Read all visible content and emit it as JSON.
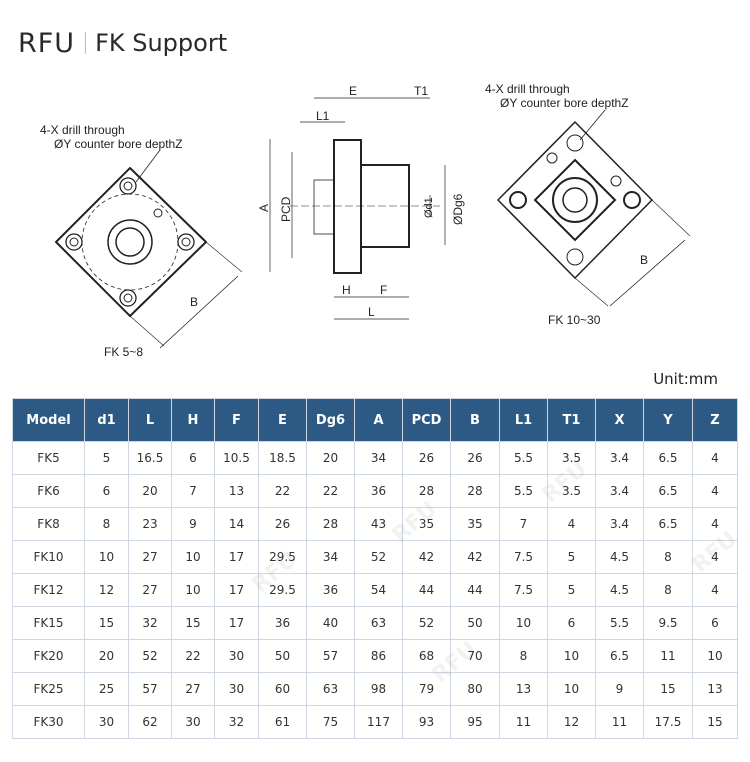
{
  "header": {
    "logo": "RFU",
    "title": "FK Support"
  },
  "drawings": {
    "left": {
      "note_line1": "4-X drill through",
      "note_line2": "ØY counter bore depthZ",
      "dim_b": "B",
      "caption": "FK 5~8"
    },
    "side": {
      "dims": [
        "E",
        "T1",
        "L1",
        "A",
        "PCD",
        "Ød1",
        "ØDg6",
        "H",
        "F",
        "L"
      ]
    },
    "right": {
      "note_line1": "4-X drill through",
      "note_line2": "ØY counter bore depthZ",
      "dim_b": "B",
      "caption": "FK 10~30"
    }
  },
  "unit_label": "Unit:mm",
  "table": {
    "columns": [
      "Model",
      "d1",
      "L",
      "H",
      "F",
      "E",
      "Dg6",
      "A",
      "PCD",
      "B",
      "L1",
      "T1",
      "X",
      "Y",
      "Z"
    ],
    "rows": [
      [
        "FK5",
        "5",
        "16.5",
        "6",
        "10.5",
        "18.5",
        "20",
        "34",
        "26",
        "26",
        "5.5",
        "3.5",
        "3.4",
        "6.5",
        "4"
      ],
      [
        "FK6",
        "6",
        "20",
        "7",
        "13",
        "22",
        "22",
        "36",
        "28",
        "28",
        "5.5",
        "3.5",
        "3.4",
        "6.5",
        "4"
      ],
      [
        "FK8",
        "8",
        "23",
        "9",
        "14",
        "26",
        "28",
        "43",
        "35",
        "35",
        "7",
        "4",
        "3.4",
        "6.5",
        "4"
      ],
      [
        "FK10",
        "10",
        "27",
        "10",
        "17",
        "29.5",
        "34",
        "52",
        "42",
        "42",
        "7.5",
        "5",
        "4.5",
        "8",
        "4"
      ],
      [
        "FK12",
        "12",
        "27",
        "10",
        "17",
        "29.5",
        "36",
        "54",
        "44",
        "44",
        "7.5",
        "5",
        "4.5",
        "8",
        "4"
      ],
      [
        "FK15",
        "15",
        "32",
        "15",
        "17",
        "36",
        "40",
        "63",
        "52",
        "50",
        "10",
        "6",
        "5.5",
        "9.5",
        "6"
      ],
      [
        "FK20",
        "20",
        "52",
        "22",
        "30",
        "50",
        "57",
        "86",
        "68",
        "70",
        "8",
        "10",
        "6.5",
        "11",
        "10"
      ],
      [
        "FK25",
        "25",
        "57",
        "27",
        "30",
        "60",
        "63",
        "98",
        "79",
        "80",
        "13",
        "10",
        "9",
        "15",
        "13"
      ],
      [
        "FK30",
        "30",
        "62",
        "30",
        "32",
        "61",
        "75",
        "117",
        "93",
        "95",
        "11",
        "12",
        "11",
        "17.5",
        "15"
      ]
    ]
  },
  "colors": {
    "header_bg": "#2c5a85",
    "grid": "#cfd8e2"
  }
}
